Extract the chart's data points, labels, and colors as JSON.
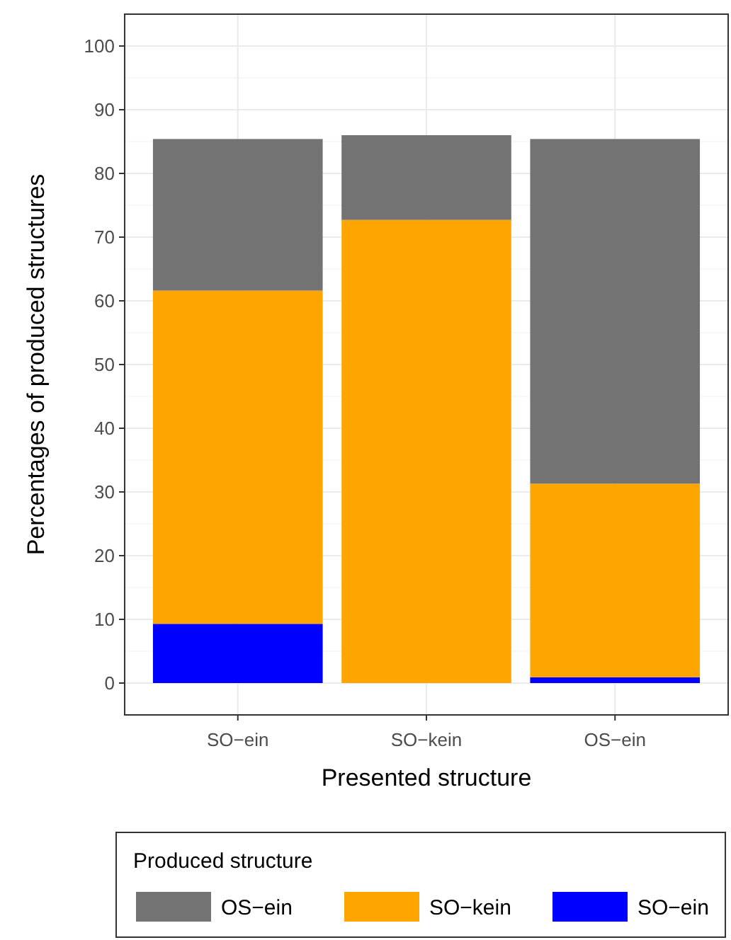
{
  "chart_data": {
    "type": "bar",
    "stacked": true,
    "xlabel": "Presented structure",
    "ylabel": "Percentages of produced structures",
    "legend_title": "Produced structure",
    "legend": "bottom",
    "grid": true,
    "categories": [
      "SO−ein",
      "SO−kein",
      "OS−ein"
    ],
    "series": [
      {
        "name": "SO−ein",
        "color": "#0000ff",
        "values": [
          9.3,
          0,
          0.9
        ]
      },
      {
        "name": "SO−kein",
        "color": "#ffa500",
        "values": [
          52.3,
          72.7,
          30.4
        ]
      },
      {
        "name": "OS−ein",
        "color": "#737373",
        "values": [
          23.8,
          13.3,
          54.1
        ]
      }
    ],
    "ylim": [
      -5,
      105
    ],
    "yticks": [
      0,
      10,
      20,
      30,
      40,
      50,
      60,
      70,
      80,
      90,
      100
    ]
  }
}
